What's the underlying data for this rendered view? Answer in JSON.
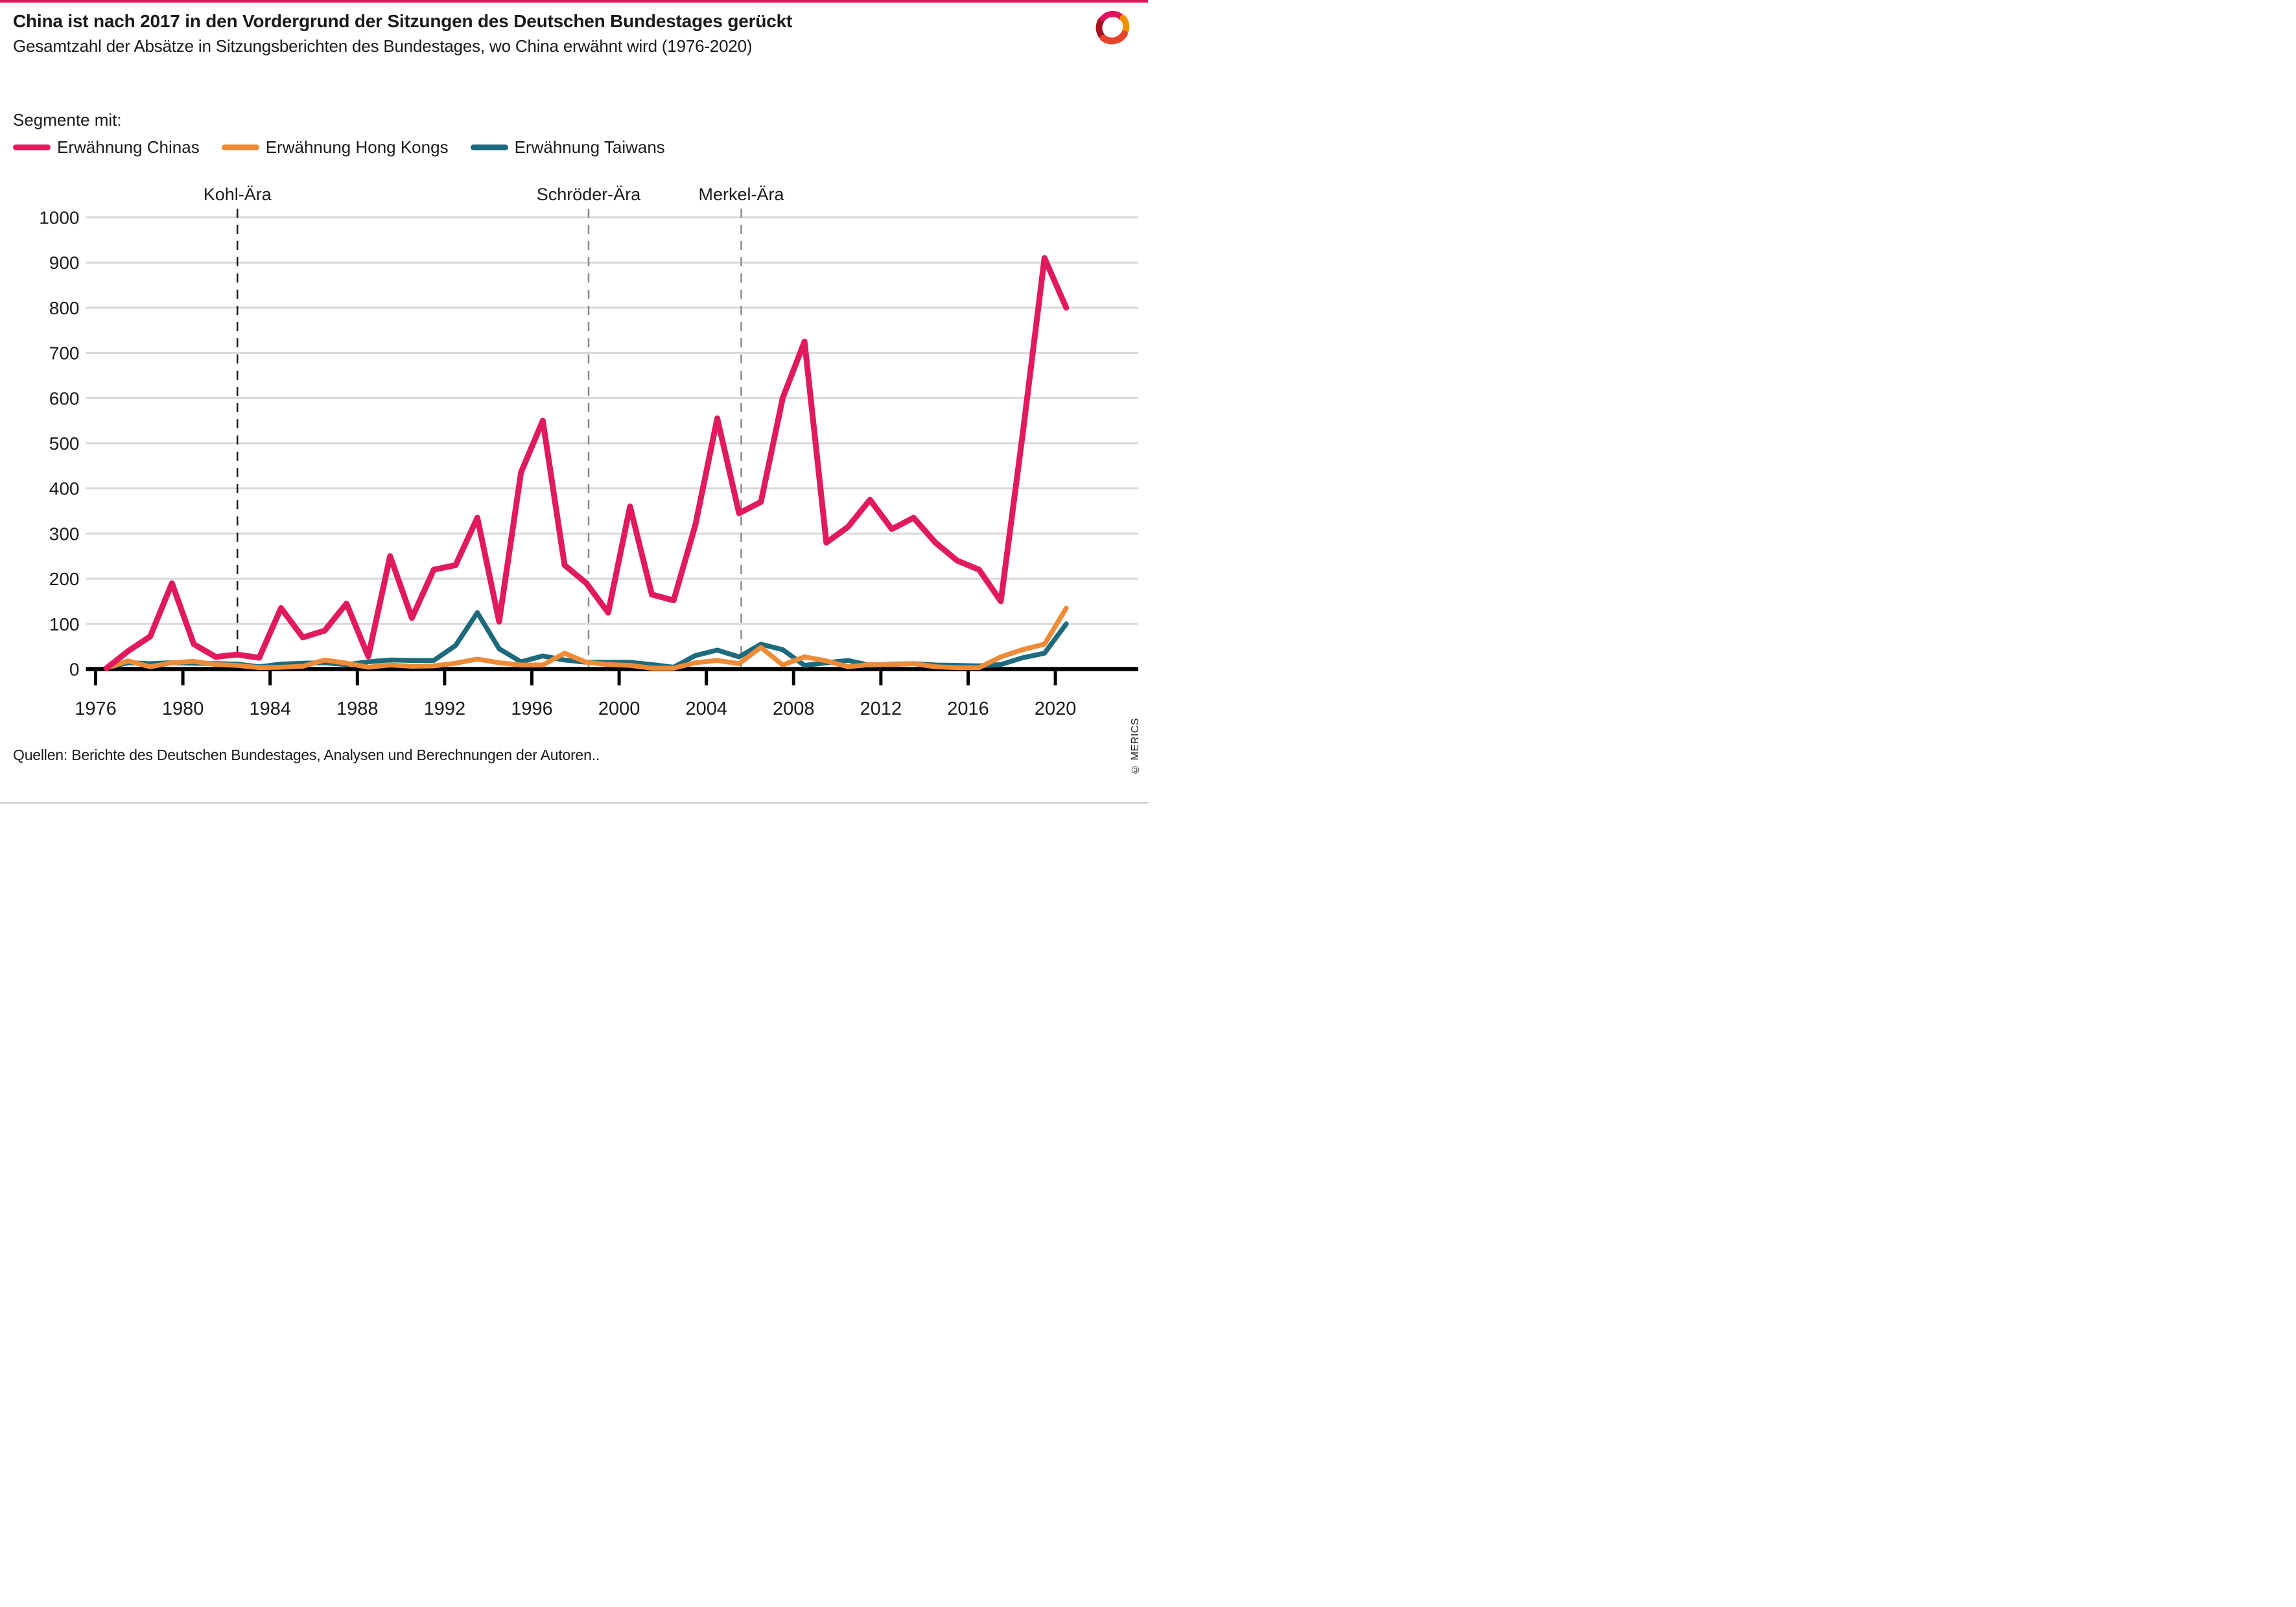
{
  "page": {
    "title": "China ist nach 2017 in den Vordergrund der Sitzungen des Deutschen Bundestages gerückt",
    "subtitle": "Gesamtzahl der Absätze in Sitzungsberichten des Bundestages, wo China erwähnt wird (1976-2020)",
    "source": "Quellen: Berichte des Deutschen Bundestages, Analysen und Berechnungen der Autoren..",
    "copyright": "© MERICS"
  },
  "colors": {
    "accent_pink": "#e11a5b",
    "hongkong_orange": "#ee8b37",
    "taiwan_teal": "#1d6a7c",
    "grid_gray": "#d8d8d8",
    "axis_black": "#000000",
    "text_dark": "#1a1a1a",
    "era_gray": "#8a8a8a"
  },
  "legend": {
    "heading": "Segmente mit:",
    "items": [
      {
        "label": "Erwähnung Chinas",
        "color": "#e11a5b"
      },
      {
        "label": "Erwähnung Hong Kongs",
        "color": "#ee8b37"
      },
      {
        "label": "Erwähnung Taiwans",
        "color": "#1d6a7c"
      }
    ]
  },
  "chart_data": {
    "type": "line",
    "title": "China ist nach 2017 in den Vordergrund der Sitzungen des Deutschen Bundestages gerückt",
    "subtitle": "Gesamtzahl der Absätze in Sitzungsberichten des Bundestages, wo China erwähnt wird (1976-2020)",
    "xlabel": "",
    "ylabel": "",
    "ylim": [
      0,
      1000
    ],
    "ytick_step": 100,
    "grid": true,
    "legend_position": "top",
    "years": [
      1976,
      1977,
      1978,
      1979,
      1980,
      1981,
      1982,
      1983,
      1984,
      1985,
      1986,
      1987,
      1988,
      1989,
      1990,
      1991,
      1992,
      1993,
      1994,
      1995,
      1996,
      1997,
      1998,
      1999,
      2000,
      2001,
      2002,
      2003,
      2004,
      2005,
      2006,
      2007,
      2008,
      2009,
      2010,
      2011,
      2012,
      2013,
      2014,
      2015,
      2016,
      2017,
      2018,
      2019,
      2020
    ],
    "xticks": [
      1976,
      1980,
      1984,
      1988,
      1992,
      1996,
      2000,
      2004,
      2008,
      2012,
      2016,
      2020
    ],
    "series": [
      {
        "id": "china",
        "name": "Erwähnung Chinas",
        "color": "#e11a5b",
        "stroke_width": 18,
        "values": [
          2,
          40,
          72,
          190,
          55,
          27,
          32,
          25,
          135,
          70,
          85,
          145,
          28,
          250,
          113,
          220,
          230,
          335,
          105,
          435,
          550,
          230,
          190,
          125,
          360,
          165,
          152,
          320,
          555,
          345,
          370,
          600,
          725,
          280,
          315,
          375,
          310,
          335,
          280,
          240,
          220,
          150,
          520,
          910,
          800
        ]
      },
      {
        "id": "hongkong",
        "name": "Erwähnung Hong Kongs",
        "color": "#ee8b37",
        "stroke_width": 15,
        "values": [
          2,
          18,
          5,
          14,
          17,
          10,
          8,
          3,
          4,
          6,
          20,
          13,
          4,
          9,
          6,
          7,
          13,
          22,
          14,
          9,
          9,
          35,
          15,
          10,
          8,
          2,
          2,
          14,
          19,
          12,
          48,
          9,
          27,
          18,
          5,
          10,
          10,
          12,
          5,
          3,
          3,
          27,
          43,
          55,
          135
        ]
      },
      {
        "id": "taiwan",
        "name": "Erwähnung Taiwans",
        "color": "#1d6a7c",
        "stroke_width": 15,
        "values": [
          3,
          14,
          12,
          14,
          13,
          12,
          11,
          5,
          11,
          13,
          14,
          10,
          16,
          20,
          19,
          19,
          52,
          125,
          45,
          16,
          29,
          20,
          15,
          15,
          15,
          10,
          4,
          30,
          42,
          27,
          55,
          43,
          8,
          14,
          19,
          8,
          11,
          12,
          9,
          8,
          7,
          10,
          25,
          35,
          100
        ]
      }
    ],
    "era_lines": [
      {
        "label": "Kohl-Ära",
        "year": 1982.5,
        "color": "#1a1a1a"
      },
      {
        "label": "Schröder-Ära",
        "year": 1998.6,
        "color": "#8a8a8a"
      },
      {
        "label": "Merkel-Ära",
        "year": 2005.6,
        "color": "#8a8a8a"
      }
    ]
  }
}
